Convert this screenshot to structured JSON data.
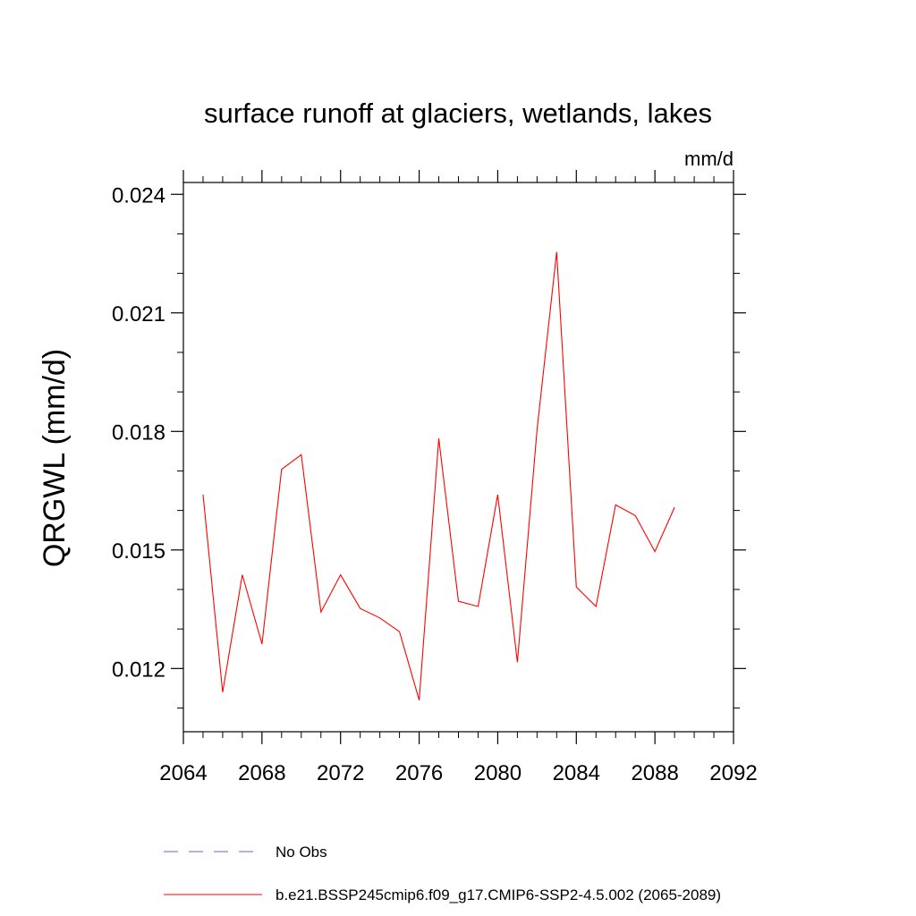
{
  "chart_data": {
    "type": "line",
    "title": "surface runoff at glaciers, wetlands, lakes",
    "units_label": "mm/d",
    "ylabel": "QRGWL  (mm/d)",
    "xlabel": "",
    "xlim": [
      2064,
      2092
    ],
    "ylim": [
      0.0104,
      0.0243
    ],
    "xticks": [
      2064,
      2068,
      2072,
      2076,
      2080,
      2084,
      2088,
      2092
    ],
    "xtick_labels": [
      "2064",
      "2068",
      "2072",
      "2076",
      "2080",
      "2084",
      "2088",
      "2092"
    ],
    "yticks": [
      0.012,
      0.015,
      0.018,
      0.021,
      0.024
    ],
    "ytick_labels": [
      "0.012",
      "0.015",
      "0.018",
      "0.021",
      "0.024"
    ],
    "grid": false,
    "legend_position": "bottom",
    "series": [
      {
        "name": "No Obs",
        "color": "#6666cc",
        "style": "dashed",
        "x": [],
        "values": []
      },
      {
        "name": "b.e21.BSSP245cmip6.f09_g17.CMIP6-SSP2-4.5.002 (2065-2089)",
        "color": "#ff0000",
        "style": "solid",
        "x": [
          2065,
          2066,
          2067,
          2068,
          2069,
          2070,
          2071,
          2072,
          2073,
          2074,
          2075,
          2076,
          2077,
          2078,
          2079,
          2080,
          2081,
          2082,
          2083,
          2084,
          2085,
          2086,
          2087,
          2088,
          2089
        ],
        "values": [
          0.0164,
          0.0114,
          0.01437,
          0.01262,
          0.01704,
          0.01741,
          0.01343,
          0.01437,
          0.01352,
          0.01328,
          0.01293,
          0.0112,
          0.01782,
          0.0137,
          0.01357,
          0.0164,
          0.01216,
          0.01805,
          0.02254,
          0.01406,
          0.01357,
          0.01614,
          0.01587,
          0.01496,
          0.01608
        ]
      }
    ]
  }
}
